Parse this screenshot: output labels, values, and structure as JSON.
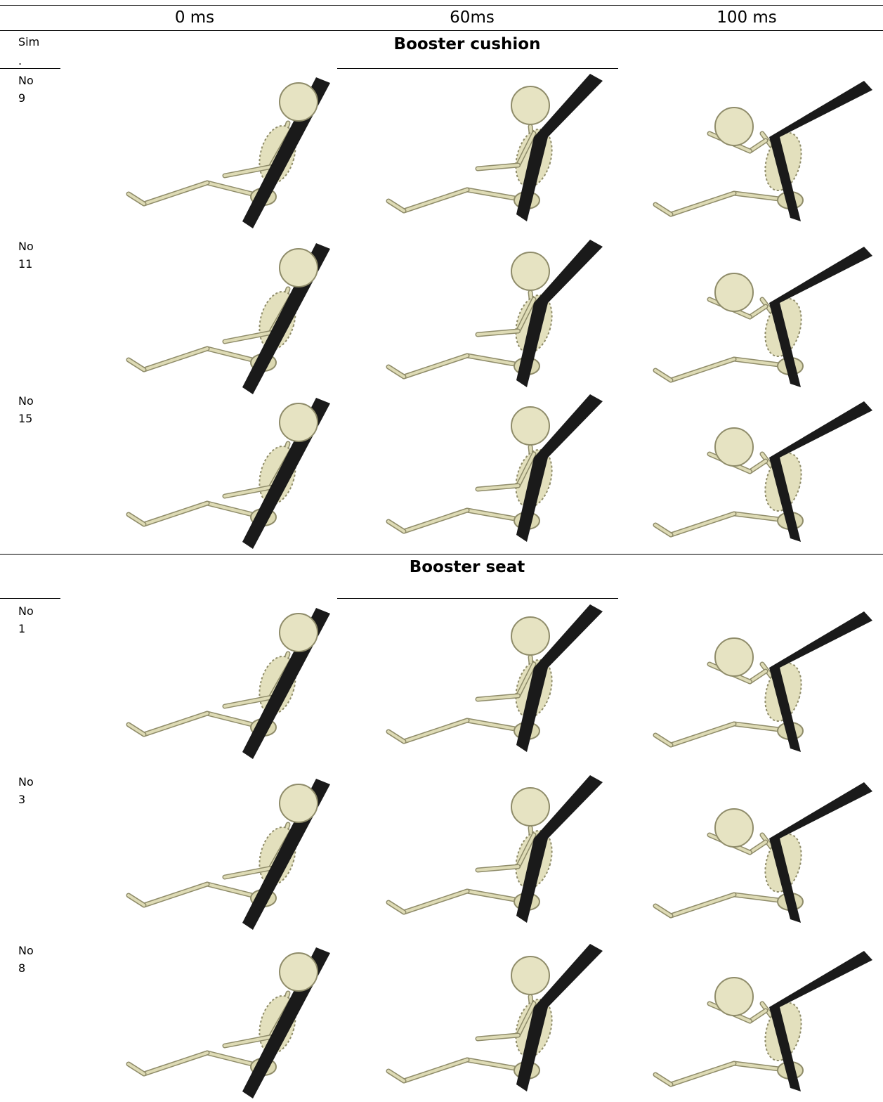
{
  "table": {
    "columns": [
      "0 ms",
      "60ms",
      "100 ms"
    ],
    "row_header": "Sim",
    "row_header_suffix": ".",
    "sections": [
      {
        "title": "Booster cushion",
        "rows": [
          {
            "label": "No",
            "number": "9"
          },
          {
            "label": "No",
            "number": "11"
          },
          {
            "label": "No",
            "number": "15"
          }
        ]
      },
      {
        "title": "Booster seat",
        "rows": [
          {
            "label": "No",
            "number": "1"
          },
          {
            "label": "No",
            "number": "3"
          },
          {
            "label": "No",
            "number": "8"
          }
        ]
      }
    ]
  }
}
